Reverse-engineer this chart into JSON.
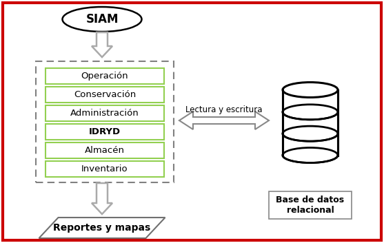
{
  "background_color": "#ffffff",
  "border_color": "#cc0000",
  "title": "SIAM",
  "modules": [
    "Operación",
    "Conservación",
    "Administración",
    "IDRYD",
    "Almacén",
    "Inventario"
  ],
  "module_box_color": "#92d050",
  "module_text_color": "#000000",
  "dashed_box_color": "#808080",
  "arrow_fill": "#ffffff",
  "arrow_edge": "#aaaaaa",
  "reports_label": "Reportes y mapas",
  "db_label": "Base de datos\nrelacional",
  "arrow_label": "Lectura y escritura",
  "db_color": "#000000",
  "fig_width": 5.57,
  "fig_height": 3.53
}
